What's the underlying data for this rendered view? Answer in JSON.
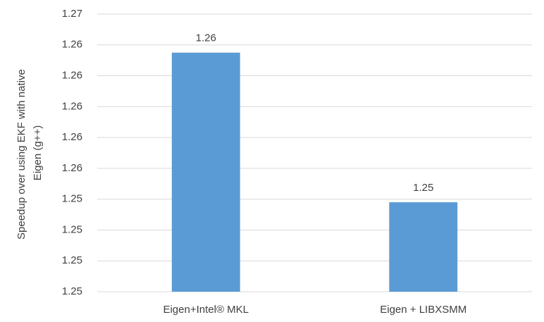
{
  "chart_data": {
    "type": "bar",
    "y_label": [
      "Speedup over using EKF with native",
      "Eigen (g++)"
    ],
    "categories": [
      "Eigen+Intel® MKL",
      "Eigen + LIBXSMM"
    ],
    "values": [
      1.2635,
      1.2538
    ],
    "value_labels": [
      "1.26",
      "1.25"
    ],
    "color": "#5b9bd5",
    "ylim": [
      1.248,
      1.266
    ],
    "yticks": [
      {
        "value": 1.248,
        "label": "1.25"
      },
      {
        "value": 1.25,
        "label": "1.25"
      },
      {
        "value": 1.252,
        "label": "1.25"
      },
      {
        "value": 1.254,
        "label": "1.25"
      },
      {
        "value": 1.256,
        "label": "1.26"
      },
      {
        "value": 1.258,
        "label": "1.26"
      },
      {
        "value": 1.26,
        "label": "1.26"
      },
      {
        "value": 1.262,
        "label": "1.26"
      },
      {
        "value": 1.264,
        "label": "1.26"
      },
      {
        "value": 1.266,
        "label": "1.27"
      }
    ],
    "grid": true
  }
}
